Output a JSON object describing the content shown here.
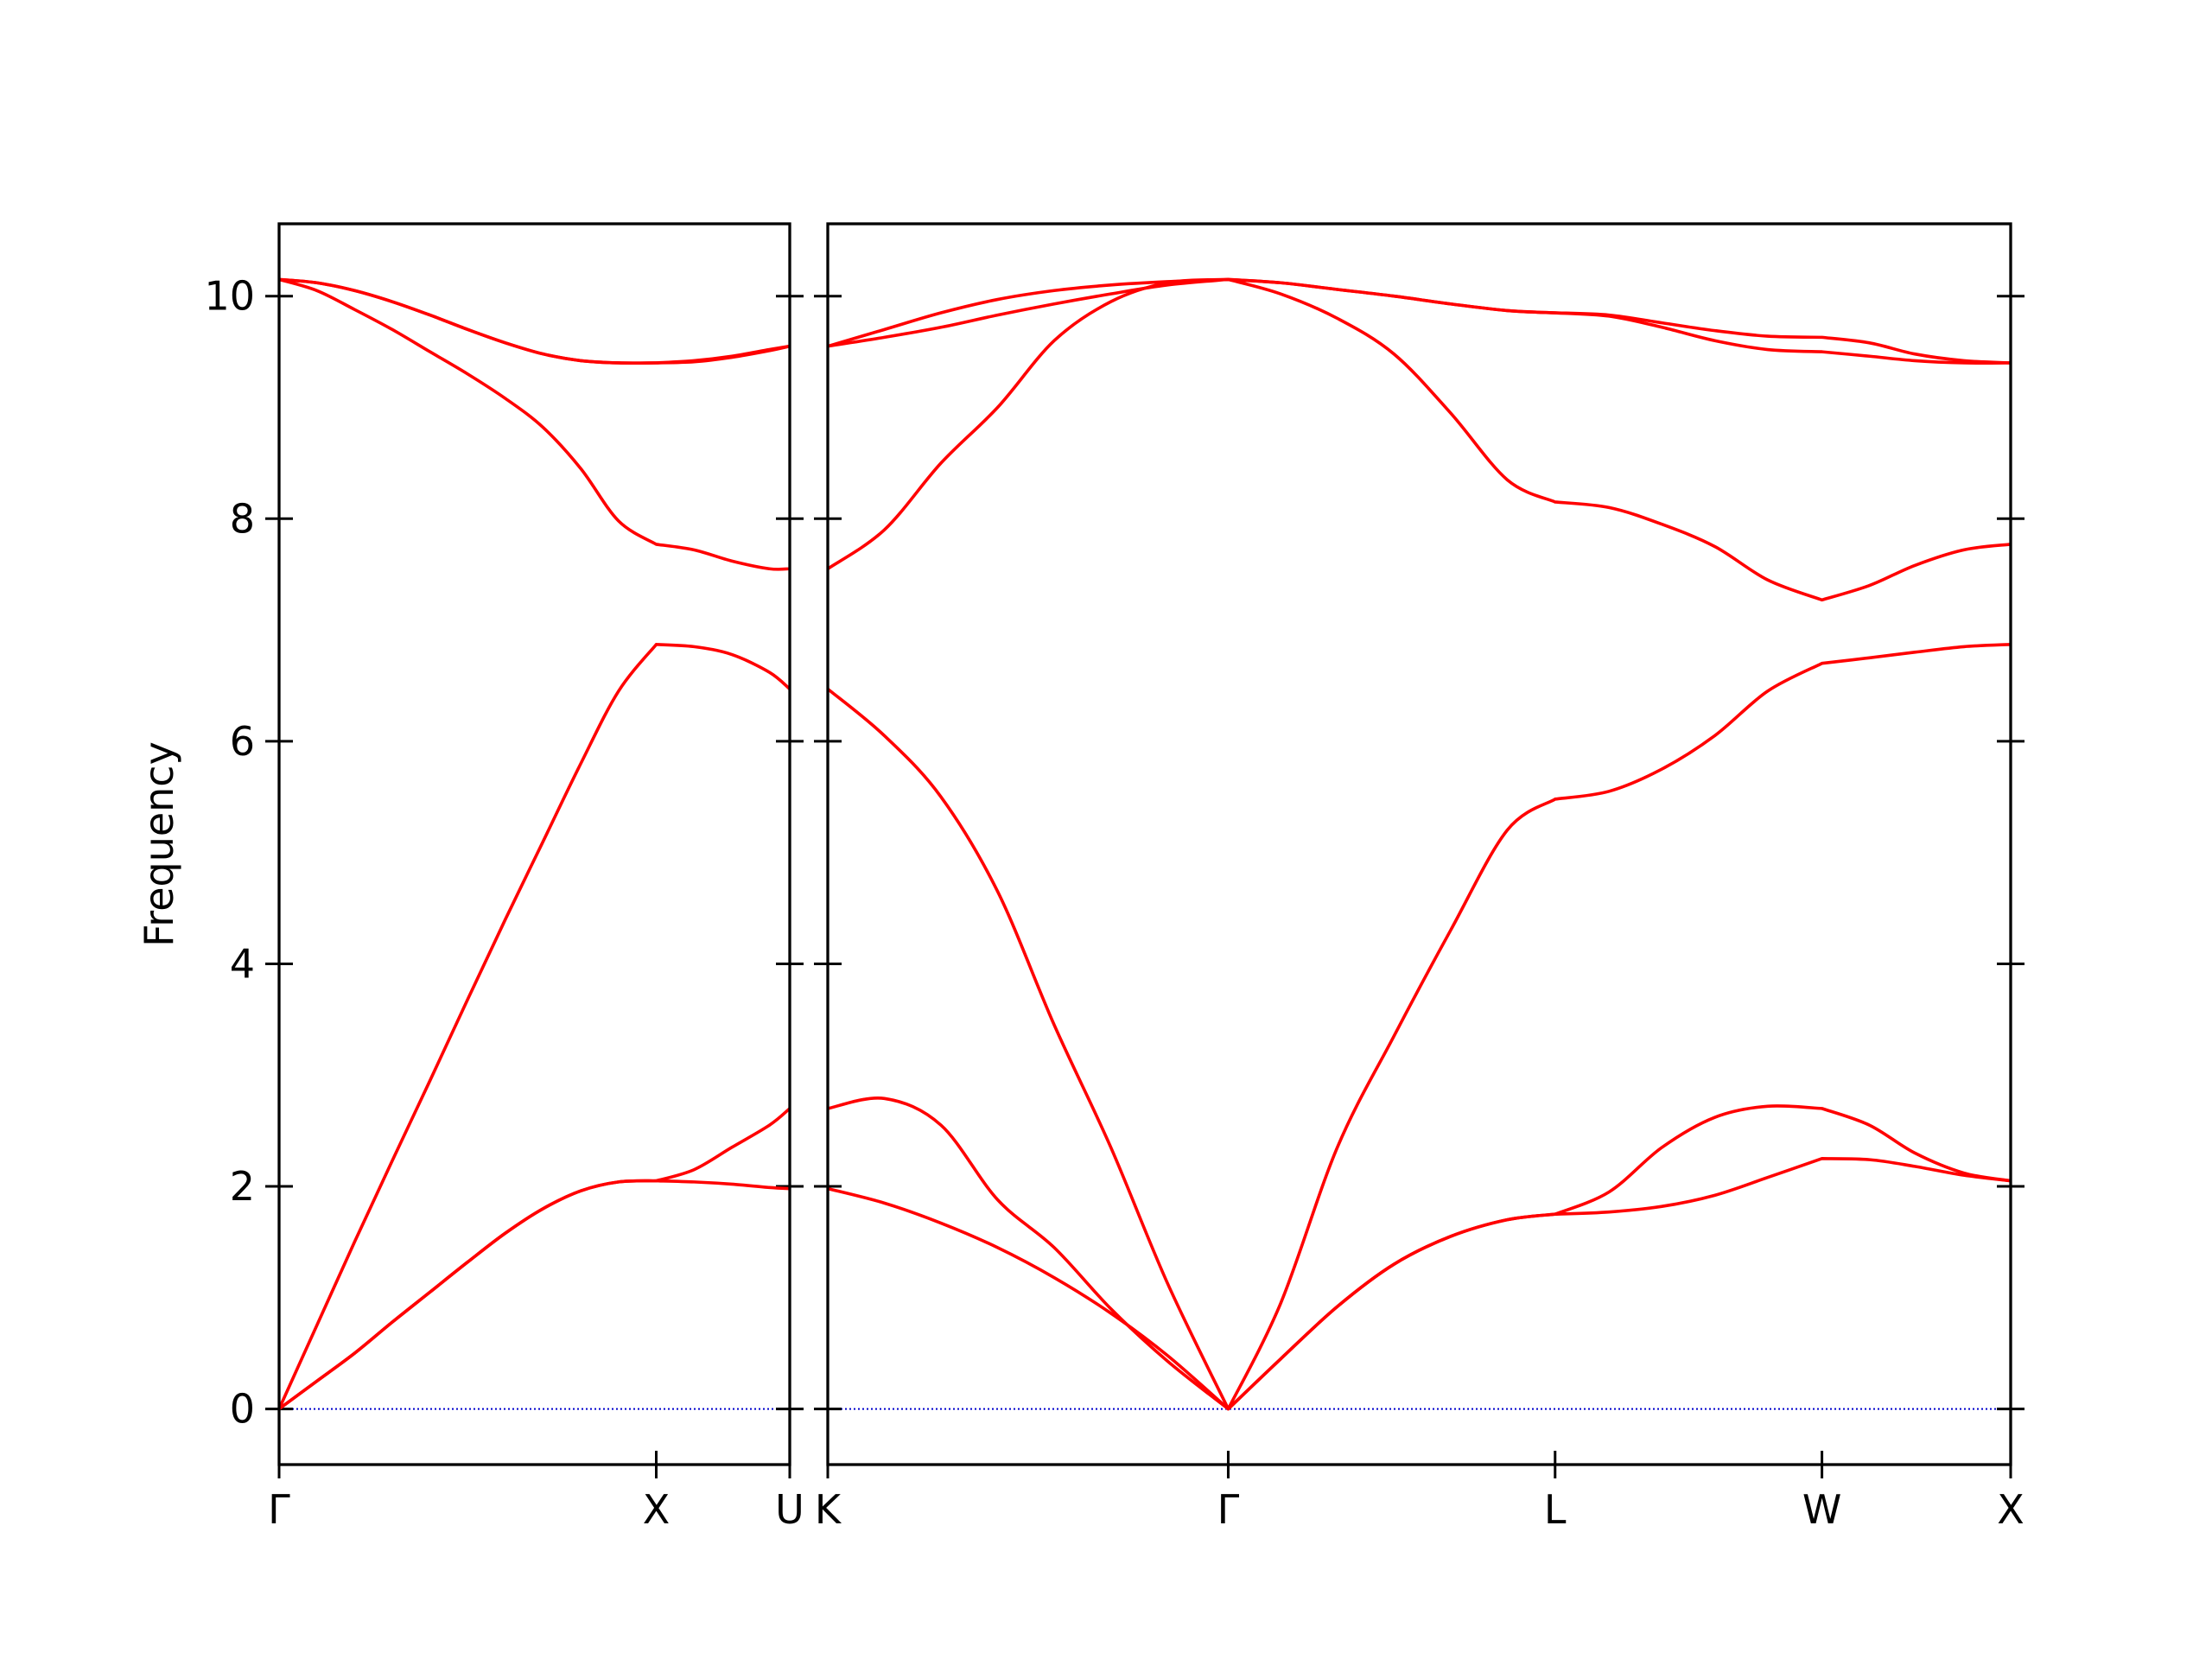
{
  "chart_data": [
    {
      "type": "line",
      "ylabel": "Frequency",
      "x": [
        0,
        0.1,
        0.2,
        0.3,
        0.4,
        0.5,
        0.6,
        0.7,
        0.8,
        0.9,
        1,
        1.1,
        1.2,
        1.3,
        1.354
      ],
      "xlim": [
        0,
        1.354
      ],
      "xticks": [
        {
          "value": 0,
          "label": "Γ"
        },
        {
          "value": 1,
          "label": "X"
        },
        {
          "value": 1.354,
          "label": "U"
        }
      ],
      "ylim": [
        -0.5,
        10.65
      ],
      "yticks": [
        0,
        2,
        4,
        6,
        8,
        10
      ],
      "ytick_labels": true,
      "hline": 0,
      "hline_color": "#0000cc",
      "series": [
        {
          "color": "#ff0000",
          "values": [
            0,
            0.25,
            0.5,
            0.78,
            1.05,
            1.32,
            1.58,
            1.8,
            1.96,
            2.04,
            2.05,
            2.04,
            2.02,
            1.99,
            1.98
          ]
        },
        {
          "color": "#ff0000",
          "values": [
            0,
            0.25,
            0.5,
            0.78,
            1.05,
            1.32,
            1.58,
            1.8,
            1.96,
            2.04,
            2.05,
            2.15,
            2.35,
            2.55,
            2.7
          ]
        },
        {
          "color": "#ff0000",
          "values": [
            0,
            0.75,
            1.5,
            2.23,
            2.95,
            3.68,
            4.4,
            5.1,
            5.8,
            6.45,
            6.87,
            6.85,
            6.78,
            6.62,
            6.47
          ]
        },
        {
          "color": "#ff0000",
          "values": [
            10.15,
            10.05,
            9.88,
            9.7,
            9.5,
            9.3,
            9.08,
            8.82,
            8.45,
            7.98,
            7.77,
            7.72,
            7.62,
            7.55,
            7.55
          ]
        },
        {
          "color": "#ff0000",
          "values": [
            10.15,
            10.12,
            10.05,
            9.95,
            9.83,
            9.7,
            9.58,
            9.48,
            9.42,
            9.4,
            9.4,
            9.42,
            9.46,
            9.52,
            9.55
          ]
        },
        {
          "color": "#ff0000",
          "values": [
            10.15,
            10.12,
            10.05,
            9.95,
            9.83,
            9.7,
            9.58,
            9.48,
            9.42,
            9.4,
            9.4,
            9.41,
            9.45,
            9.51,
            9.55
          ]
        }
      ]
    },
    {
      "type": "line",
      "x": [
        0,
        0.15,
        0.3,
        0.45,
        0.6,
        0.75,
        0.9,
        1.061,
        1.2,
        1.35,
        1.5,
        1.65,
        1.8,
        1.927,
        2.07,
        2.21,
        2.35,
        2.49,
        2.634,
        2.76,
        2.88,
        3.01,
        3.134
      ],
      "xlim": [
        0,
        3.134
      ],
      "xticks": [
        {
          "value": 0,
          "label": "K"
        },
        {
          "value": 1.061,
          "label": "Γ"
        },
        {
          "value": 1.927,
          "label": "L"
        },
        {
          "value": 2.634,
          "label": "W"
        },
        {
          "value": 3.134,
          "label": "X"
        }
      ],
      "ylim": [
        -0.5,
        10.65
      ],
      "yticks": [
        0,
        2,
        4,
        6,
        8,
        10
      ],
      "ytick_labels": false,
      "hline": 0,
      "hline_color": "#0000cc",
      "series": [
        {
          "color": "#ff0000",
          "values": [
            1.98,
            1.85,
            1.67,
            1.45,
            1.18,
            0.86,
            0.48,
            0,
            0.45,
            0.92,
            1.3,
            1.55,
            1.7,
            1.75,
            1.77,
            1.82,
            1.92,
            2.08,
            2.25,
            2.24,
            2.18,
            2.1,
            2.05
          ]
        },
        {
          "color": "#ff0000",
          "values": [
            2.7,
            2.79,
            2.55,
            1.88,
            1.45,
            0.9,
            0.43,
            0,
            0.45,
            0.92,
            1.3,
            1.55,
            1.7,
            1.75,
            1.95,
            2.35,
            2.62,
            2.72,
            2.7,
            2.55,
            2.3,
            2.12,
            2.05
          ]
        },
        {
          "color": "#ff0000",
          "values": [
            6.47,
            6.05,
            5.5,
            4.65,
            3.45,
            2.35,
            1.13,
            0,
            0.95,
            2.35,
            3.35,
            4.3,
            5.2,
            5.48,
            5.55,
            5.75,
            6.05,
            6.45,
            6.7,
            6.75,
            6.8,
            6.85,
            6.87
          ]
        },
        {
          "color": "#ff0000",
          "values": [
            7.55,
            7.9,
            8.5,
            9.0,
            9.6,
            9.95,
            10.12,
            10.15,
            10.02,
            9.8,
            9.48,
            8.95,
            8.35,
            8.15,
            8.1,
            7.95,
            7.75,
            7.45,
            7.27,
            7.4,
            7.58,
            7.72,
            7.77
          ]
        },
        {
          "color": "#ff0000",
          "values": [
            9.55,
            9.7,
            9.85,
            9.97,
            10.05,
            10.1,
            10.13,
            10.15,
            10.12,
            10.06,
            10.0,
            9.93,
            9.87,
            9.85,
            9.82,
            9.72,
            9.6,
            9.52,
            9.5,
            9.46,
            9.42,
            9.4,
            9.4
          ]
        },
        {
          "color": "#ff0000",
          "values": [
            9.55,
            9.63,
            9.72,
            9.83,
            9.93,
            10.02,
            10.1,
            10.15,
            10.12,
            10.06,
            10.0,
            9.93,
            9.87,
            9.85,
            9.83,
            9.76,
            9.69,
            9.64,
            9.63,
            9.58,
            9.48,
            9.42,
            9.4
          ]
        }
      ]
    }
  ]
}
